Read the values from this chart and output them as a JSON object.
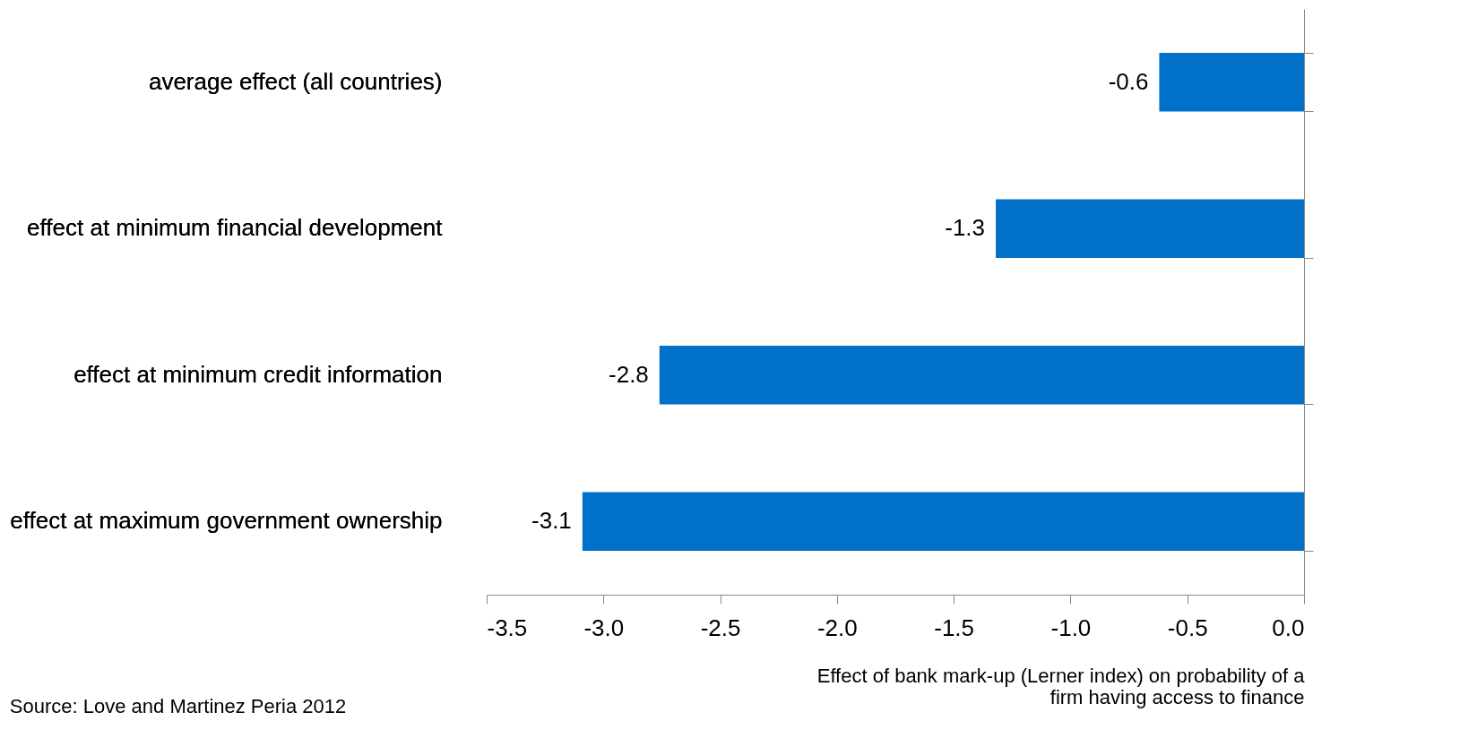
{
  "chart_data": {
    "type": "bar",
    "orientation": "horizontal",
    "categories": [
      "average effect (all countries)",
      "effect at minimum financial development",
      "effect at minimum credit information",
      "effect at maximum government ownership"
    ],
    "values": [
      -0.62,
      -1.32,
      -2.76,
      -3.09
    ],
    "value_labels": [
      "-0.6",
      "-1.3",
      "-2.8",
      "-3.1"
    ],
    "color": "#0070c8",
    "xlim": [
      -3.5,
      0
    ],
    "xticks": [
      {
        "value": -3.5,
        "label": "-3.5"
      },
      {
        "value": -3,
        "label": "-3.0"
      },
      {
        "value": -2.5,
        "label": "-2.5"
      },
      {
        "value": -2,
        "label": "-2.0"
      },
      {
        "value": -1.5,
        "label": "-1.5"
      },
      {
        "value": -1,
        "label": "-1.0"
      },
      {
        "value": -0.5,
        "label": "-0.5"
      },
      {
        "value": 0,
        "label": "0.0"
      }
    ],
    "xlabel": "Effect of bank mark-up (Lerner index) on probability of a firm having access to finance",
    "annotations": [
      "Source: Love and Martinez Peria 2012"
    ],
    "grid": false
  }
}
